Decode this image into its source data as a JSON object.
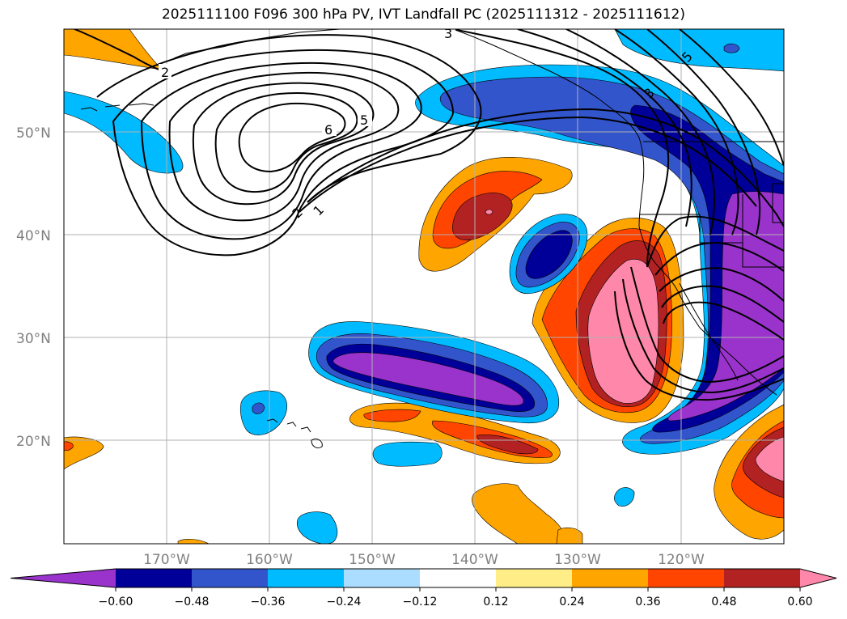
{
  "title": "2025111100 F096 300 hPa PV, IVT Landfall PC (2025111312 - 2025111612)",
  "map": {
    "lat_labels": [
      "50°N",
      "40°N",
      "30°N",
      "20°N"
    ],
    "lon_labels": [
      "170°W",
      "160°W",
      "150°W",
      "140°W",
      "130°W",
      "120°W"
    ],
    "contour_labels": [
      "2",
      "3",
      "5",
      "6",
      "5",
      "2",
      "1",
      "3"
    ]
  },
  "colorbar": {
    "ticks": [
      "−0.60",
      "−0.48",
      "−0.36",
      "−0.24",
      "−0.12",
      "0.12",
      "0.24",
      "0.36",
      "0.48",
      "0.60"
    ],
    "colors": [
      "#9933cc",
      "#000099",
      "#3355cc",
      "#00bbff",
      "#aaddff",
      "#ffffff",
      "#ffee88",
      "#ffa500",
      "#ff4500",
      "#b22222",
      "#ff88aa"
    ]
  }
}
